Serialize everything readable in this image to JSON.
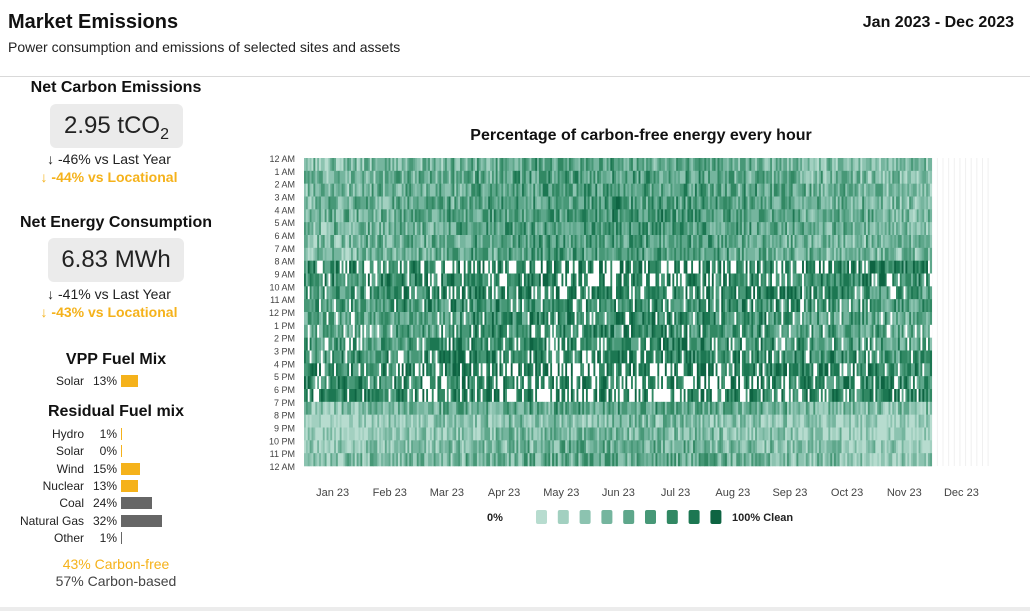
{
  "header": {
    "title": "Market Emissions",
    "subtitle": "Power consumption and emissions of selected sites and assets",
    "date_range": "Jan 2023 - Dec 2023"
  },
  "carbon": {
    "title": "Net Carbon Emissions",
    "value": "2.95 tCO",
    "value_sub": "2",
    "vs_last_year": "↓ -46% vs Last Year",
    "vs_locational": "↓ -44% vs Locational"
  },
  "energy": {
    "title": "Net Energy Consumption",
    "value": "6.83 MWh",
    "vs_last_year": "↓ -41% vs Last Year",
    "vs_locational": "↓ -43% vs Locational"
  },
  "vpp": {
    "title": "VPP Fuel Mix",
    "items": [
      {
        "label": "Solar",
        "pct_text": "13%",
        "value": 13,
        "color": "#f5b21b"
      }
    ]
  },
  "residual": {
    "title": "Residual Fuel mix",
    "items": [
      {
        "label": "Hydro",
        "pct_text": "1%",
        "value": 1,
        "color": "#f5b21b"
      },
      {
        "label": "Solar",
        "pct_text": "0%",
        "value": 0,
        "color": "#f5b21b"
      },
      {
        "label": "Wind",
        "pct_text": "15%",
        "value": 15,
        "color": "#f5b21b"
      },
      {
        "label": "Nuclear",
        "pct_text": "13%",
        "value": 13,
        "color": "#f5b21b"
      },
      {
        "label": "Coal",
        "pct_text": "24%",
        "value": 24,
        "color": "#666666"
      },
      {
        "label": "Natural Gas",
        "pct_text": "32%",
        "value": 32,
        "color": "#666666"
      },
      {
        "label": "Other",
        "pct_text": "1%",
        "value": 1,
        "color": "#666666"
      }
    ],
    "carbon_free": "43% Carbon-free",
    "carbon_based": "57% Carbon-based"
  },
  "chart_data": {
    "type": "heatmap",
    "title": "Percentage of carbon-free energy every hour",
    "y_labels": [
      "12 AM",
      "1 AM",
      "2 AM",
      "3 AM",
      "4 AM",
      "5 AM",
      "6 AM",
      "7 AM",
      "8 AM",
      "9 AM",
      "10 AM",
      "11 AM",
      "12 PM",
      "1 PM",
      "2 PM",
      "3 PM",
      "4 PM",
      "5 PM",
      "6 PM",
      "7 PM",
      "8 PM",
      "9 PM",
      "10 PM",
      "11 PM",
      "12 AM"
    ],
    "x_labels": [
      "Jan 23",
      "Feb 23",
      "Mar 23",
      "Apr 23",
      "May 23",
      "Jun 23",
      "Jul 23",
      "Aug 23",
      "Sep 23",
      "Oct 23",
      "Nov 23",
      "Dec 23"
    ],
    "days_with_data": 334,
    "total_days": 365,
    "hourly_mean_pct": [
      70,
      72,
      73,
      74,
      75,
      74,
      73,
      72,
      92,
      88,
      85,
      82,
      80,
      80,
      82,
      86,
      90,
      90,
      92,
      70,
      62,
      62,
      65,
      68
    ],
    "legend": {
      "min_label": "0%",
      "max_label": "100% Clean",
      "steps": 9,
      "colors": [
        "#b7dccf",
        "#a2d0c0",
        "#8cc3b0",
        "#75b59e",
        "#5ea78b",
        "#479877",
        "#318863",
        "#1c7752",
        "#0d6442"
      ]
    },
    "empty_color": "#ffffff"
  }
}
